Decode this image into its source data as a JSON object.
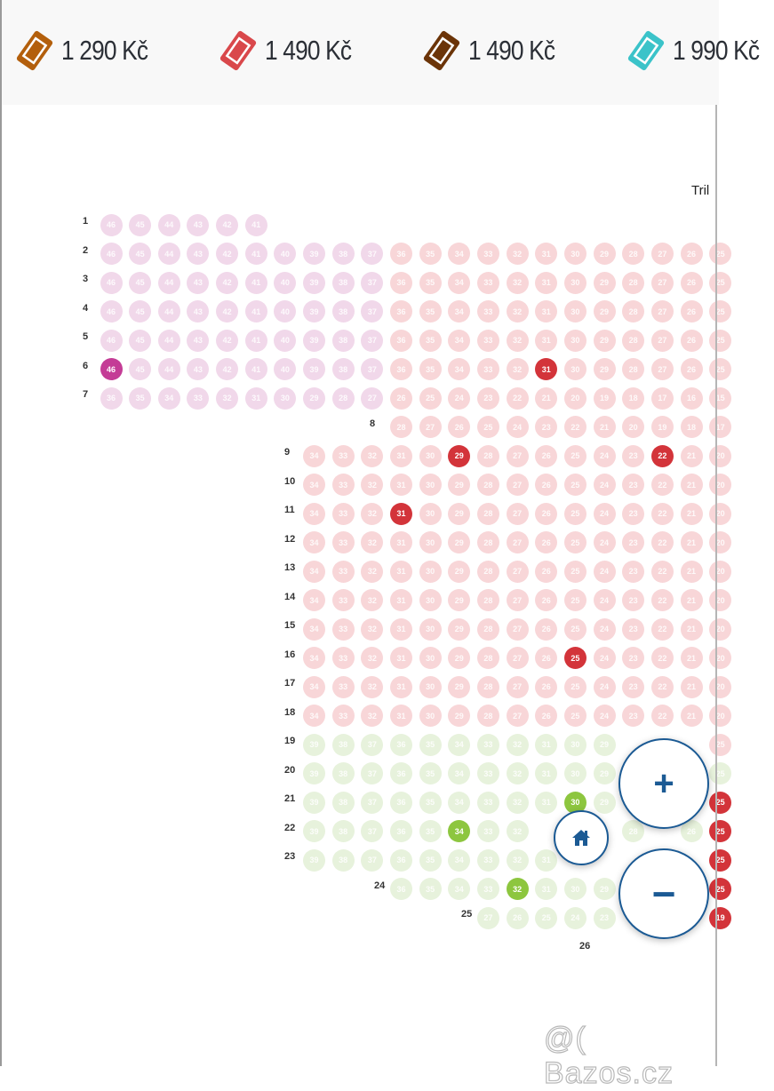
{
  "header": {
    "prices": [
      {
        "label": "1 290 Kč",
        "color": "#b35f0c",
        "icon": "ticket-icon"
      },
      {
        "label": "1 490 Kč",
        "color": "#d9484b",
        "icon": "ticket-icon"
      },
      {
        "label": "1 490 Kč",
        "color": "#6b3408",
        "icon": "ticket-icon"
      },
      {
        "label": "1 990 Kč",
        "color": "#3bc3c9",
        "icon": "ticket-icon"
      }
    ]
  },
  "section_label": "Tril",
  "colors": {
    "zone_pink": "#f1d8ea",
    "zone_salmon": "#f8d6d8",
    "zone_green": "#e7f2dc",
    "selected_magenta": "#c43c96",
    "selected_red": "#d3343a",
    "selected_green": "#8dc63f"
  },
  "rows": [
    {
      "label": "1",
      "start": 46,
      "segments": [
        {
          "zone": "pink",
          "count": 6
        }
      ],
      "selected": []
    },
    {
      "label": "2",
      "start": 46,
      "segments": [
        {
          "zone": "pink",
          "count": 10
        },
        {
          "zone": "salmon",
          "count": 12
        }
      ],
      "selected": []
    },
    {
      "label": "3",
      "start": 46,
      "segments": [
        {
          "zone": "pink",
          "count": 10
        },
        {
          "zone": "salmon",
          "count": 12
        }
      ],
      "selected": []
    },
    {
      "label": "4",
      "start": 46,
      "segments": [
        {
          "zone": "pink",
          "count": 10
        },
        {
          "zone": "salmon",
          "count": 12
        }
      ],
      "selected": []
    },
    {
      "label": "5",
      "start": 46,
      "segments": [
        {
          "zone": "pink",
          "count": 10
        },
        {
          "zone": "salmon",
          "count": 12
        }
      ],
      "selected": []
    },
    {
      "label": "6",
      "start": 46,
      "segments": [
        {
          "zone": "pink",
          "count": 10
        },
        {
          "zone": "salmon",
          "count": 12
        }
      ],
      "selected": [
        {
          "seat": 46,
          "color": "selected_magenta"
        },
        {
          "seat": 31,
          "color": "selected_red"
        }
      ]
    },
    {
      "label": "7",
      "start": 36,
      "segments": [
        {
          "zone": "pink",
          "count": 10
        },
        {
          "zone": "salmon",
          "count": 12
        }
      ],
      "selected": []
    },
    {
      "label": "8",
      "start": 28,
      "segments": [
        {
          "zone": "salmon",
          "count": 12
        }
      ],
      "selected": []
    },
    {
      "label": "9",
      "start": 34,
      "segments": [
        {
          "zone": "salmon",
          "count": 15
        }
      ],
      "selected": [
        {
          "seat": 29,
          "color": "selected_red"
        },
        {
          "seat": 22,
          "color": "selected_red"
        }
      ]
    },
    {
      "label": "10",
      "start": 34,
      "segments": [
        {
          "zone": "salmon",
          "count": 15
        }
      ],
      "selected": []
    },
    {
      "label": "11",
      "start": 34,
      "segments": [
        {
          "zone": "salmon",
          "count": 15
        }
      ],
      "selected": [
        {
          "seat": 31,
          "color": "selected_red"
        }
      ]
    },
    {
      "label": "12",
      "start": 34,
      "segments": [
        {
          "zone": "salmon",
          "count": 15
        }
      ],
      "selected": []
    },
    {
      "label": "13",
      "start": 34,
      "segments": [
        {
          "zone": "salmon",
          "count": 15
        }
      ],
      "selected": []
    },
    {
      "label": "14",
      "start": 34,
      "segments": [
        {
          "zone": "salmon",
          "count": 15
        }
      ],
      "selected": []
    },
    {
      "label": "15",
      "start": 34,
      "segments": [
        {
          "zone": "salmon",
          "count": 15
        }
      ],
      "selected": []
    },
    {
      "label": "16",
      "start": 34,
      "segments": [
        {
          "zone": "salmon",
          "count": 15
        }
      ],
      "selected": [
        {
          "seat": 25,
          "color": "selected_red"
        }
      ]
    },
    {
      "label": "17",
      "start": 34,
      "segments": [
        {
          "zone": "salmon",
          "count": 15
        }
      ],
      "selected": []
    },
    {
      "label": "18",
      "start": 34,
      "segments": [
        {
          "zone": "salmon",
          "count": 15
        }
      ],
      "selected": []
    },
    {
      "label": "19",
      "start": 39,
      "segments": [
        {
          "zone": "green",
          "count": 14
        },
        {
          "zone": "salmon",
          "count": 1
        }
      ],
      "selected": []
    },
    {
      "label": "20",
      "start": 39,
      "segments": [
        {
          "zone": "green",
          "count": 15
        }
      ],
      "selected": []
    },
    {
      "label": "21",
      "start": 39,
      "segments": [
        {
          "zone": "green",
          "count": 14
        },
        {
          "zone": "salmon",
          "count": 1
        }
      ],
      "selected": [
        {
          "seat": 30,
          "color": "selected_green"
        },
        {
          "seat": 25,
          "color": "selected_red"
        }
      ]
    },
    {
      "label": "22",
      "start": 39,
      "segments": [
        {
          "zone": "green",
          "count": 14
        },
        {
          "zone": "salmon",
          "count": 1
        }
      ],
      "selected": [
        {
          "seat": 34,
          "color": "selected_green"
        },
        {
          "seat": 25,
          "color": "selected_red"
        }
      ]
    },
    {
      "label": "23",
      "start": 39,
      "segments": [
        {
          "zone": "green",
          "count": 14
        },
        {
          "zone": "salmon",
          "count": 1
        }
      ],
      "selected": [
        {
          "seat": 25,
          "color": "selected_red"
        }
      ]
    },
    {
      "label": "24",
      "start": 36,
      "segments": [
        {
          "zone": "green",
          "count": 11
        },
        {
          "zone": "salmon",
          "count": 1
        }
      ],
      "selected": [
        {
          "seat": 32,
          "color": "selected_green"
        },
        {
          "seat": 25,
          "color": "selected_red"
        }
      ]
    },
    {
      "label": "25",
      "start": 27,
      "segments": [
        {
          "zone": "green",
          "count": 8
        },
        {
          "zone": "salmon",
          "count": 1
        }
      ],
      "selected": [
        {
          "seat": 19,
          "color": "selected_red"
        }
      ]
    },
    {
      "label": "26",
      "start": 0,
      "segments": [],
      "selected": []
    }
  ],
  "controls": {
    "zoom_in": "+",
    "zoom_out": "−",
    "home_icon": "home-icon"
  },
  "watermark": "@( Bazos.cz"
}
